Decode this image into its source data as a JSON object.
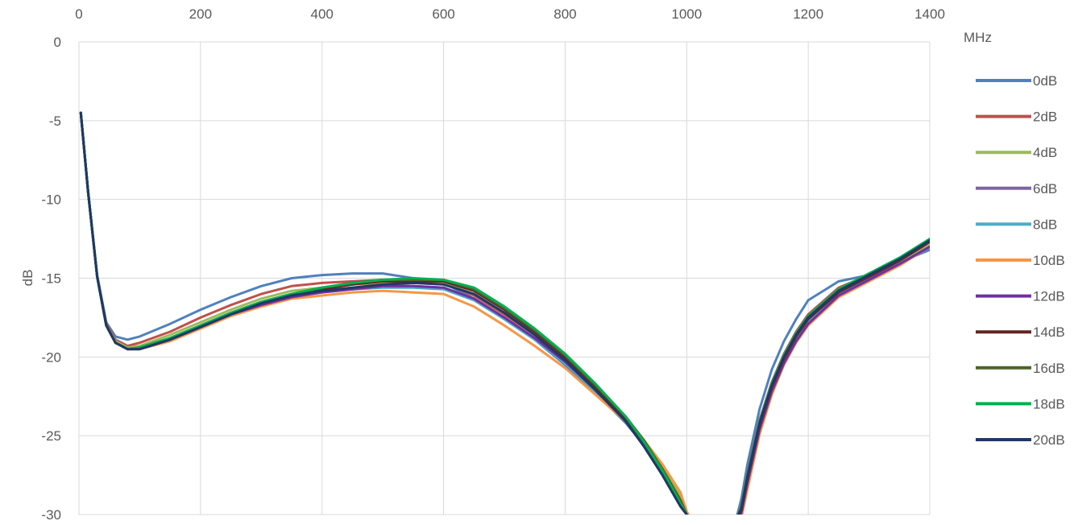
{
  "chart_data": {
    "type": "line",
    "xlabel": "MHz",
    "ylabel": "dB",
    "xlim": [
      0,
      1400
    ],
    "ylim": [
      -30,
      0
    ],
    "x_ticks": [
      0,
      200,
      400,
      600,
      800,
      1000,
      1200,
      1400
    ],
    "y_ticks": [
      0,
      -5,
      -10,
      -15,
      -20,
      -25,
      -30
    ],
    "x_axis_position": "top",
    "grid": true,
    "legend_position": "right",
    "series": [
      {
        "name": "0dB",
        "color": "#4F81BD",
        "x": [
          3,
          15,
          30,
          45,
          60,
          80,
          100,
          150,
          200,
          250,
          300,
          350,
          400,
          450,
          500,
          550,
          600,
          650,
          700,
          750,
          800,
          850,
          900,
          930,
          960,
          990,
          1000,
          1010,
          1080,
          1090,
          1100,
          1120,
          1140,
          1160,
          1180,
          1200,
          1250,
          1300,
          1350,
          1400
        ],
        "y": [
          -4.5,
          -9.5,
          -14.8,
          -17.8,
          -18.7,
          -18.9,
          -18.7,
          -17.9,
          -17,
          -16.2,
          -15.5,
          -15,
          -14.8,
          -14.7,
          -14.7,
          -15,
          -15.3,
          -16.3,
          -17.6,
          -18.9,
          -20.5,
          -22.3,
          -24.2,
          -25.6,
          -27.2,
          -29,
          -30,
          -30.5,
          -30.5,
          -29,
          -26.8,
          -23.3,
          -20.8,
          -19,
          -17.6,
          -16.4,
          -15.2,
          -14.8,
          -14,
          -13.2
        ]
      },
      {
        "name": "2dB",
        "color": "#C0504D",
        "x": [
          3,
          15,
          30,
          45,
          60,
          80,
          100,
          150,
          200,
          250,
          300,
          350,
          400,
          450,
          500,
          550,
          600,
          650,
          700,
          750,
          800,
          850,
          900,
          930,
          960,
          990,
          1000,
          1010,
          1080,
          1090,
          1100,
          1120,
          1140,
          1160,
          1180,
          1200,
          1250,
          1300,
          1350,
          1400
        ],
        "y": [
          -4.5,
          -9.5,
          -14.9,
          -17.9,
          -18.9,
          -19.3,
          -19.1,
          -18.4,
          -17.5,
          -16.7,
          -16,
          -15.5,
          -15.3,
          -15.2,
          -15.1,
          -15.1,
          -15.3,
          -16.1,
          -17.3,
          -18.6,
          -20.2,
          -22,
          -24,
          -25.4,
          -27,
          -28.9,
          -30,
          -30.5,
          -30.5,
          -29.4,
          -27.4,
          -24,
          -21.6,
          -19.8,
          -18.4,
          -17.3,
          -15.6,
          -14.8,
          -14,
          -13
        ]
      },
      {
        "name": "4dB",
        "color": "#9BBB59",
        "x": [
          3,
          15,
          30,
          45,
          60,
          80,
          100,
          150,
          200,
          250,
          300,
          350,
          400,
          450,
          500,
          550,
          600,
          650,
          700,
          750,
          800,
          850,
          900,
          930,
          960,
          990,
          1000,
          1010,
          1080,
          1090,
          1100,
          1120,
          1140,
          1160,
          1180,
          1200,
          1250,
          1300,
          1350,
          1400
        ],
        "y": [
          -4.5,
          -9.5,
          -14.9,
          -18,
          -19,
          -19.4,
          -19.3,
          -18.6,
          -17.8,
          -17,
          -16.3,
          -15.8,
          -15.6,
          -15.4,
          -15.3,
          -15.2,
          -15.3,
          -16,
          -17.2,
          -18.5,
          -20.1,
          -21.9,
          -23.9,
          -25.3,
          -26.9,
          -28.8,
          -30,
          -30.5,
          -30.5,
          -29.6,
          -27.6,
          -24.2,
          -21.8,
          -20,
          -18.6,
          -17.5,
          -15.8,
          -14.9,
          -14,
          -12.9
        ]
      },
      {
        "name": "6dB",
        "color": "#8064A2",
        "x": [
          3,
          15,
          30,
          45,
          60,
          80,
          100,
          150,
          200,
          250,
          300,
          350,
          400,
          450,
          500,
          550,
          600,
          650,
          700,
          750,
          800,
          850,
          900,
          930,
          960,
          990,
          1000,
          1010,
          1080,
          1090,
          1100,
          1120,
          1140,
          1160,
          1180,
          1200,
          1250,
          1300,
          1350,
          1400
        ],
        "y": [
          -4.5,
          -9.5,
          -14.9,
          -18,
          -19.1,
          -19.5,
          -19.4,
          -18.8,
          -18,
          -17.2,
          -16.5,
          -16,
          -15.8,
          -15.6,
          -15.5,
          -15.5,
          -15.6,
          -16.3,
          -17.5,
          -18.8,
          -20.3,
          -22.1,
          -24,
          -25.5,
          -27.2,
          -29.1,
          -30,
          -30.5,
          -30.5,
          -29.8,
          -27.8,
          -24.4,
          -22,
          -20.2,
          -18.8,
          -17.7,
          -15.9,
          -15,
          -14.1,
          -13
        ]
      },
      {
        "name": "8dB",
        "color": "#4BACC6",
        "x": [
          3,
          15,
          30,
          45,
          60,
          80,
          100,
          150,
          200,
          250,
          300,
          350,
          400,
          450,
          500,
          550,
          600,
          650,
          700,
          750,
          800,
          850,
          900,
          930,
          960,
          990,
          1000,
          1010,
          1080,
          1090,
          1100,
          1120,
          1140,
          1160,
          1180,
          1200,
          1250,
          1300,
          1350,
          1400
        ],
        "y": [
          -4.5,
          -9.5,
          -14.9,
          -18,
          -19.1,
          -19.5,
          -19.4,
          -18.9,
          -18.1,
          -17.3,
          -16.6,
          -16.1,
          -15.9,
          -15.7,
          -15.6,
          -15.6,
          -15.7,
          -16.4,
          -17.6,
          -18.9,
          -20.4,
          -22.2,
          -24.1,
          -25.6,
          -27.3,
          -29.2,
          -30,
          -30.5,
          -30.5,
          -29.8,
          -27.9,
          -24.5,
          -22.1,
          -20.3,
          -18.9,
          -17.8,
          -16,
          -15.1,
          -14.1,
          -13
        ]
      },
      {
        "name": "10dB",
        "color": "#F79646",
        "x": [
          3,
          15,
          30,
          45,
          60,
          80,
          100,
          150,
          200,
          250,
          300,
          350,
          400,
          450,
          500,
          550,
          600,
          650,
          700,
          750,
          800,
          850,
          900,
          930,
          960,
          990,
          1000,
          1010,
          1080,
          1090,
          1100,
          1120,
          1140,
          1160,
          1180,
          1200,
          1250,
          1300,
          1350,
          1400
        ],
        "y": [
          -4.5,
          -9.5,
          -14.9,
          -18,
          -19.1,
          -19.5,
          -19.5,
          -19,
          -18.2,
          -17.4,
          -16.8,
          -16.3,
          -16.1,
          -15.9,
          -15.8,
          -15.9,
          -16,
          -16.8,
          -18,
          -19.3,
          -20.7,
          -22.4,
          -24.1,
          -25.3,
          -26.8,
          -28.6,
          -29.8,
          -30.5,
          -30.5,
          -30.2,
          -28.4,
          -24.9,
          -22.4,
          -20.5,
          -19.1,
          -18,
          -16.2,
          -15.2,
          -14.2,
          -13
        ]
      },
      {
        "name": "12dB",
        "color": "#7030A0",
        "x": [
          3,
          15,
          30,
          45,
          60,
          80,
          100,
          150,
          200,
          250,
          300,
          350,
          400,
          450,
          500,
          550,
          600,
          650,
          700,
          750,
          800,
          850,
          900,
          930,
          960,
          990,
          1000,
          1010,
          1080,
          1090,
          1100,
          1120,
          1140,
          1160,
          1180,
          1200,
          1250,
          1300,
          1350,
          1400
        ],
        "y": [
          -4.5,
          -9.5,
          -14.9,
          -18,
          -19.1,
          -19.5,
          -19.5,
          -18.9,
          -18.1,
          -17.3,
          -16.7,
          -16.2,
          -15.9,
          -15.7,
          -15.5,
          -15.5,
          -15.6,
          -16.3,
          -17.5,
          -18.8,
          -20.3,
          -22.1,
          -24,
          -25.5,
          -27.2,
          -29.2,
          -30,
          -30.5,
          -30.5,
          -29.9,
          -28,
          -24.6,
          -22.2,
          -20.4,
          -19,
          -17.9,
          -16.1,
          -15.1,
          -14.1,
          -13
        ]
      },
      {
        "name": "14dB",
        "color": "#632523",
        "x": [
          3,
          15,
          30,
          45,
          60,
          80,
          100,
          150,
          200,
          250,
          300,
          350,
          400,
          450,
          500,
          550,
          600,
          650,
          700,
          750,
          800,
          850,
          900,
          930,
          960,
          990,
          1000,
          1010,
          1080,
          1090,
          1100,
          1120,
          1140,
          1160,
          1180,
          1200,
          1250,
          1300,
          1350,
          1400
        ],
        "y": [
          -4.5,
          -9.5,
          -14.9,
          -18,
          -19.1,
          -19.5,
          -19.4,
          -18.8,
          -18,
          -17.2,
          -16.5,
          -16,
          -15.7,
          -15.4,
          -15.2,
          -15.2,
          -15.2,
          -15.8,
          -17,
          -18.4,
          -20,
          -21.9,
          -23.9,
          -25.4,
          -27.1,
          -29.1,
          -30,
          -30.5,
          -30.5,
          -29.7,
          -27.7,
          -24.3,
          -21.9,
          -20.1,
          -18.7,
          -17.6,
          -15.9,
          -14.9,
          -13.9,
          -12.7
        ]
      },
      {
        "name": "16dB",
        "color": "#4F6228",
        "x": [
          3,
          15,
          30,
          45,
          60,
          80,
          100,
          150,
          200,
          250,
          300,
          350,
          400,
          450,
          500,
          550,
          600,
          650,
          700,
          750,
          800,
          850,
          900,
          930,
          960,
          990,
          1000,
          1010,
          1080,
          1090,
          1100,
          1120,
          1140,
          1160,
          1180,
          1200,
          1250,
          1300,
          1350,
          1400
        ],
        "y": [
          -4.5,
          -9.5,
          -14.9,
          -18,
          -19.1,
          -19.5,
          -19.4,
          -18.8,
          -18,
          -17.2,
          -16.5,
          -16,
          -15.6,
          -15.3,
          -15.1,
          -15.1,
          -15.1,
          -15.7,
          -16.9,
          -18.3,
          -19.9,
          -21.8,
          -23.8,
          -25.3,
          -27.1,
          -29.1,
          -30,
          -30.5,
          -30.5,
          -29.6,
          -27.6,
          -24.2,
          -21.8,
          -20,
          -18.6,
          -17.5,
          -15.8,
          -14.8,
          -13.8,
          -12.6
        ]
      },
      {
        "name": "18dB",
        "color": "#00B050",
        "x": [
          3,
          15,
          30,
          45,
          60,
          80,
          100,
          150,
          200,
          250,
          300,
          350,
          400,
          450,
          500,
          550,
          600,
          650,
          700,
          750,
          800,
          850,
          900,
          930,
          960,
          990,
          1000,
          1010,
          1080,
          1090,
          1100,
          1120,
          1140,
          1160,
          1180,
          1200,
          1250,
          1300,
          1350,
          1400
        ],
        "y": [
          -4.5,
          -9.5,
          -14.9,
          -18,
          -19.1,
          -19.5,
          -19.4,
          -18.8,
          -18,
          -17.2,
          -16.5,
          -16,
          -15.6,
          -15.3,
          -15.1,
          -15,
          -15.1,
          -15.6,
          -16.8,
          -18.2,
          -19.8,
          -21.7,
          -23.8,
          -25.4,
          -27.2,
          -29.3,
          -30,
          -30.5,
          -30.5,
          -29.5,
          -27.5,
          -24.1,
          -21.7,
          -19.9,
          -18.5,
          -17.4,
          -15.7,
          -14.7,
          -13.7,
          -12.5
        ]
      },
      {
        "name": "20dB",
        "color": "#1F3864",
        "x": [
          3,
          15,
          30,
          45,
          60,
          80,
          100,
          150,
          200,
          250,
          300,
          350,
          400,
          450,
          500,
          550,
          600,
          650,
          700,
          750,
          800,
          850,
          900,
          930,
          960,
          990,
          1000,
          1010,
          1080,
          1090,
          1100,
          1120,
          1140,
          1160,
          1180,
          1200,
          1250,
          1300,
          1350,
          1400
        ],
        "y": [
          -4.5,
          -9.5,
          -14.9,
          -18,
          -19.1,
          -19.5,
          -19.5,
          -18.9,
          -18.1,
          -17.3,
          -16.6,
          -16.1,
          -15.8,
          -15.6,
          -15.4,
          -15.3,
          -15.4,
          -16,
          -17.2,
          -18.6,
          -20.2,
          -22.1,
          -24.1,
          -25.7,
          -27.5,
          -29.5,
          -30,
          -30.5,
          -30.5,
          -29.6,
          -27.6,
          -24.2,
          -21.8,
          -20,
          -18.6,
          -17.5,
          -15.8,
          -14.8,
          -13.8,
          -12.6
        ]
      }
    ]
  }
}
